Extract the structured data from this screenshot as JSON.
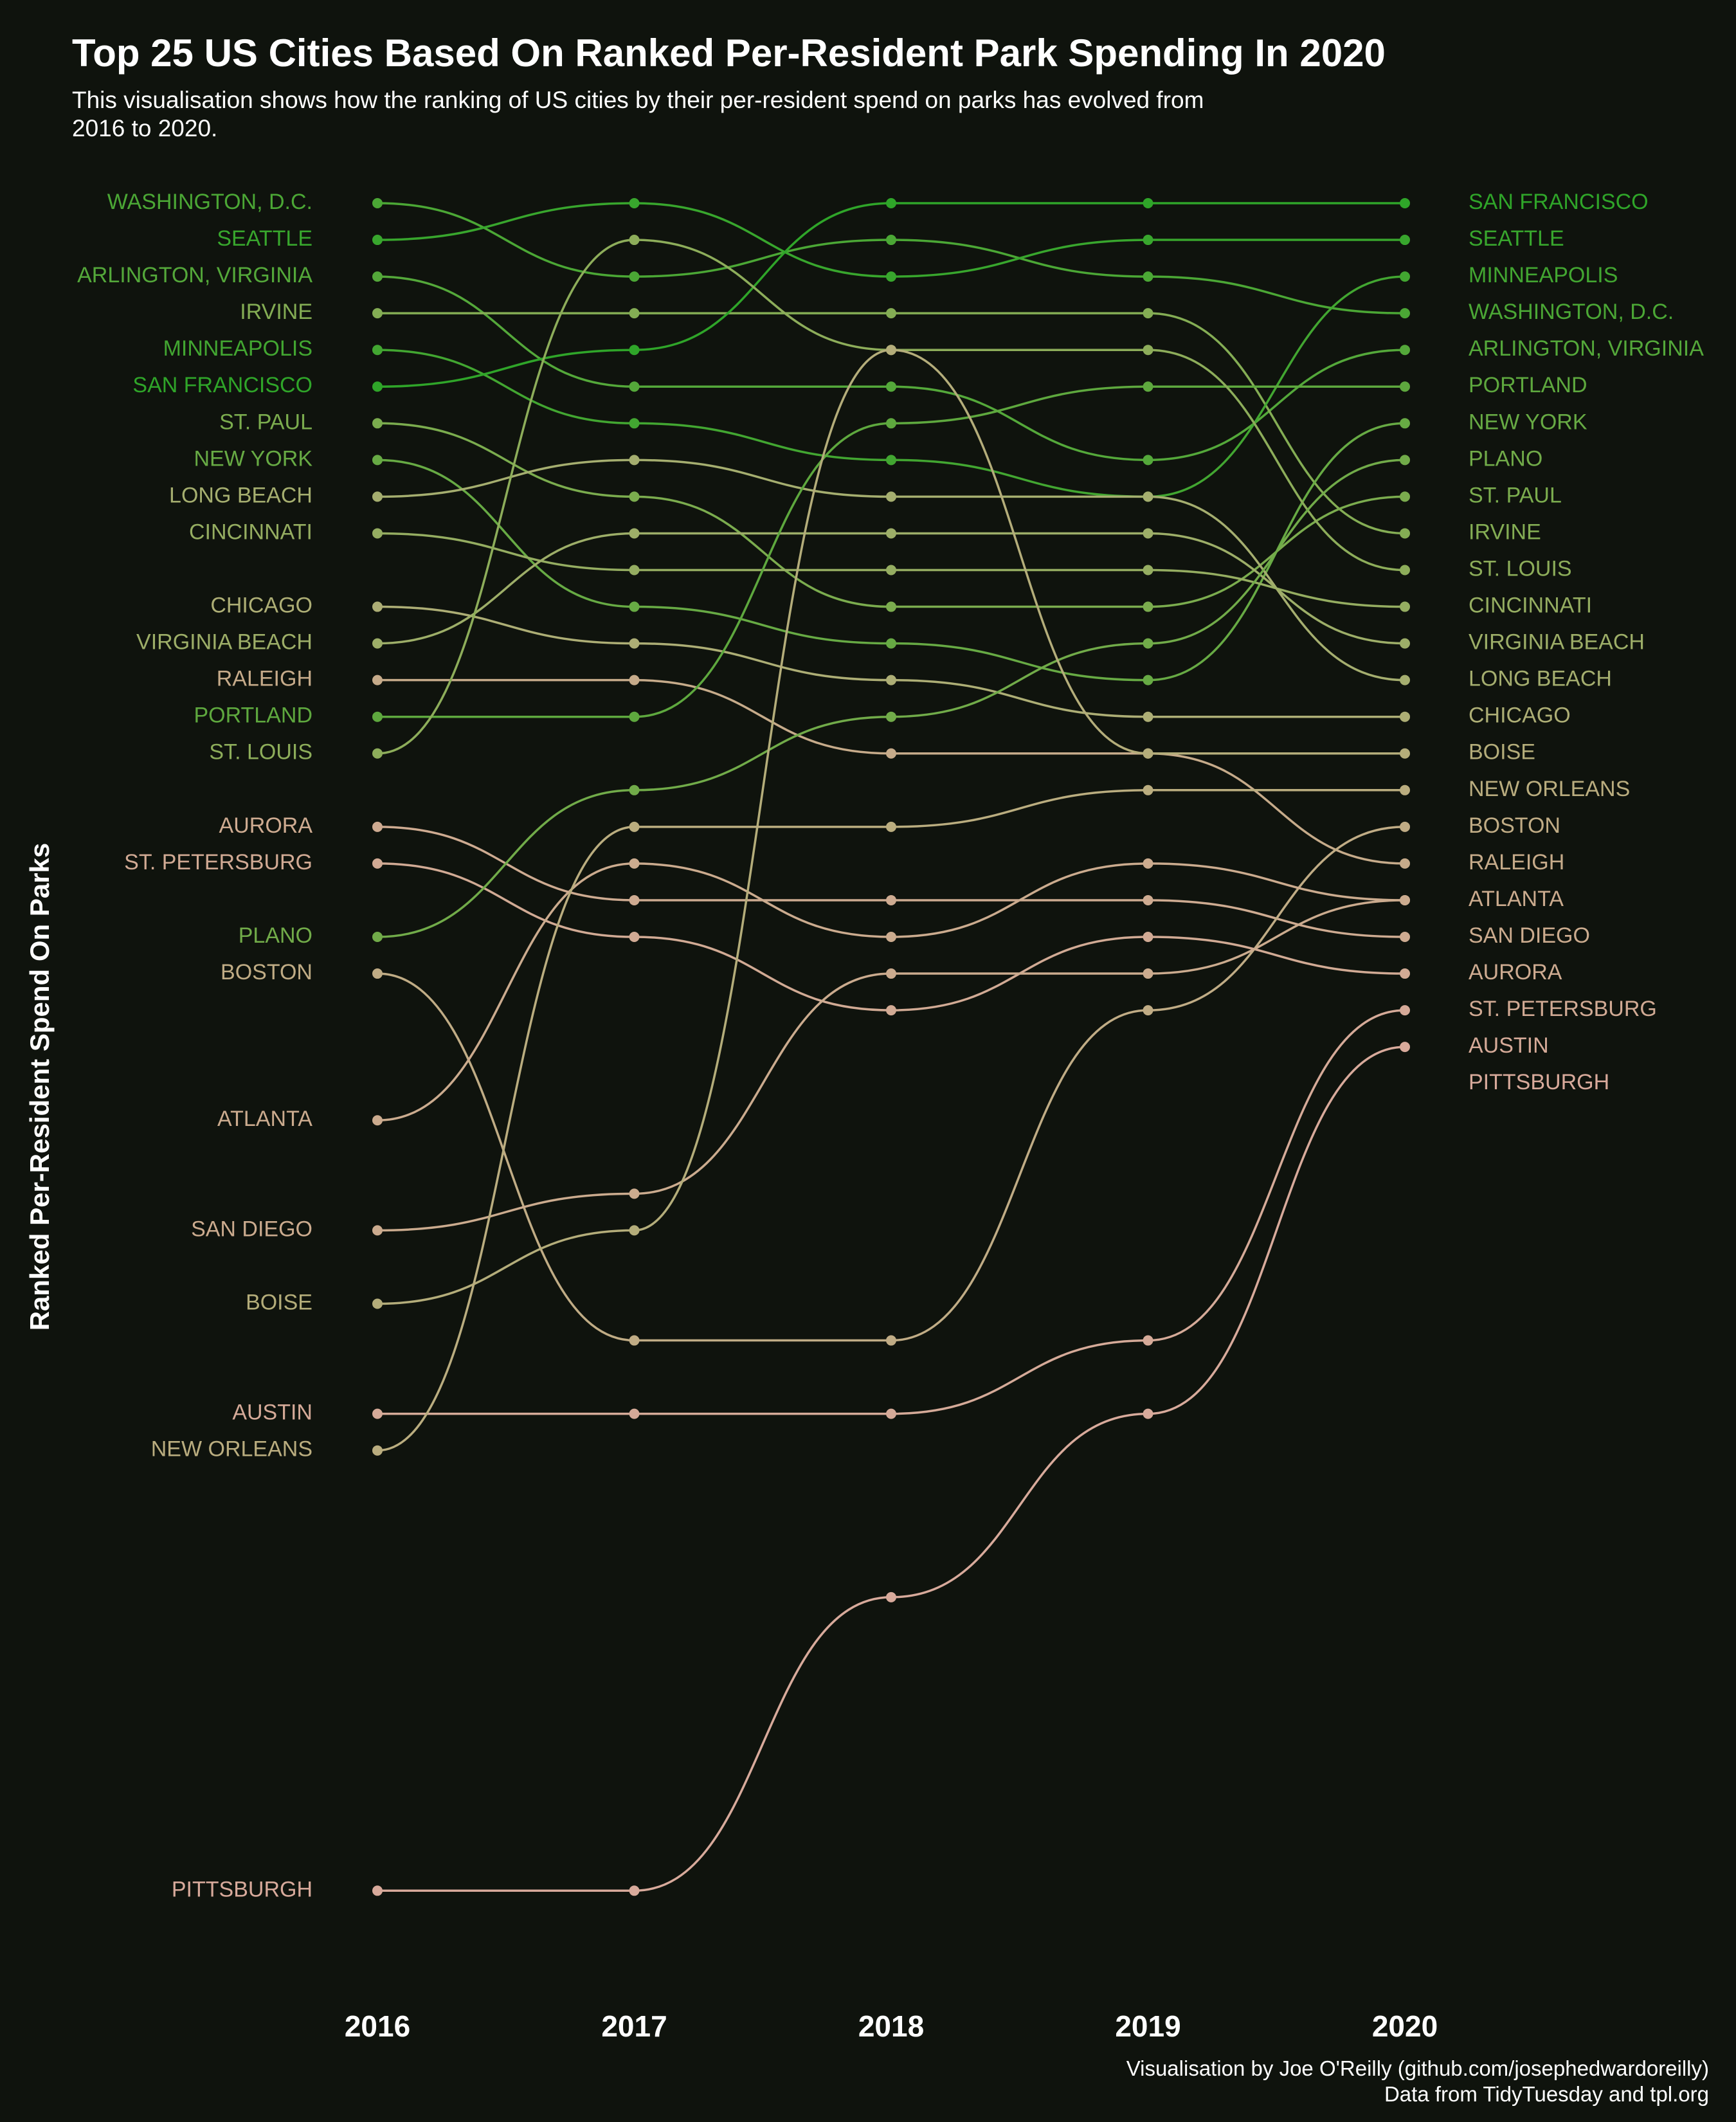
{
  "title": "Top 25 US Cities Based On Ranked Per-Resident Park Spending In 2020",
  "subtitle": "This visualisation shows how the ranking of US cities by their per-resident spend on parks has evolved from 2016 to 2020.",
  "ylabel": "Ranked Per-Resident Spend On Parks",
  "caption_line1": "Visualisation by Joe O'Reilly (github.com/josephedwardoreilly)",
  "caption_line2": "Data from TidyTuesday and tpl.org",
  "colors": {
    "background": "#0f130d",
    "gradient": [
      "#2fa529",
      "#5aa83c",
      "#86ad55",
      "#acae74",
      "#c9ab8c",
      "#d8aa9b"
    ],
    "text": "#ffffff"
  },
  "chart_data": {
    "type": "line",
    "style": "bump chart (rank over time, rank 1 at top)",
    "x": [
      2016,
      2017,
      2018,
      2019,
      2020
    ],
    "x_tick_labels": [
      "2016",
      "2017",
      "2018",
      "2019",
      "2020"
    ],
    "ylabel": "Ranked Per-Resident Spend On Parks",
    "ylim": [
      1,
      47
    ],
    "y_inverted": true,
    "grid": false,
    "legend": "none (cities labelled directly at both ends)",
    "series": [
      {
        "name": "WASHINGTON, D.C.",
        "ranks": [
          1,
          3,
          2,
          3,
          4
        ]
      },
      {
        "name": "SEATTLE",
        "ranks": [
          2,
          1,
          3,
          2,
          2
        ]
      },
      {
        "name": "ARLINGTON, VIRGINIA",
        "ranks": [
          3,
          6,
          6,
          8,
          5
        ]
      },
      {
        "name": "IRVINE",
        "ranks": [
          4,
          4,
          4,
          4,
          10
        ]
      },
      {
        "name": "MINNEAPOLIS",
        "ranks": [
          5,
          7,
          8,
          9,
          3
        ]
      },
      {
        "name": "SAN FRANCISCO",
        "ranks": [
          6,
          5,
          1,
          1,
          1
        ]
      },
      {
        "name": "ST. PAUL",
        "ranks": [
          7,
          9,
          12,
          12,
          9
        ]
      },
      {
        "name": "NEW YORK",
        "ranks": [
          8,
          12,
          13,
          14,
          7
        ]
      },
      {
        "name": "LONG BEACH",
        "ranks": [
          9,
          8,
          9,
          9,
          14
        ]
      },
      {
        "name": "CINCINNATI",
        "ranks": [
          10,
          11,
          11,
          11,
          12
        ]
      },
      {
        "name": "CHICAGO",
        "ranks": [
          12,
          13,
          14,
          15,
          15
        ]
      },
      {
        "name": "VIRGINIA BEACH",
        "ranks": [
          13,
          10,
          10,
          10,
          13
        ]
      },
      {
        "name": "RALEIGH",
        "ranks": [
          14,
          14,
          16,
          16,
          19
        ]
      },
      {
        "name": "PORTLAND",
        "ranks": [
          15,
          15,
          7,
          6,
          6
        ]
      },
      {
        "name": "ST. LOUIS",
        "ranks": [
          16,
          2,
          5,
          5,
          11
        ]
      },
      {
        "name": "AURORA",
        "ranks": [
          18,
          20,
          20,
          20,
          21
        ]
      },
      {
        "name": "ST. PETERSBURG",
        "ranks": [
          19,
          21,
          23,
          21,
          22
        ]
      },
      {
        "name": "PLANO",
        "ranks": [
          21,
          17,
          15,
          13,
          8
        ]
      },
      {
        "name": "BOSTON",
        "ranks": [
          22,
          32,
          32,
          23,
          18
        ]
      },
      {
        "name": "ATLANTA",
        "ranks": [
          26,
          19,
          21,
          19,
          20
        ]
      },
      {
        "name": "SAN DIEGO",
        "ranks": [
          29,
          28,
          22,
          22,
          20
        ]
      },
      {
        "name": "BOISE",
        "ranks": [
          31,
          29,
          5,
          16,
          16
        ]
      },
      {
        "name": "AUSTIN",
        "ranks": [
          34,
          34,
          34,
          32,
          23
        ]
      },
      {
        "name": "NEW ORLEANS",
        "ranks": [
          35,
          18,
          18,
          17,
          17
        ]
      },
      {
        "name": "PITTSBURGH",
        "ranks": [
          47,
          47,
          39,
          34,
          24
        ]
      }
    ]
  }
}
